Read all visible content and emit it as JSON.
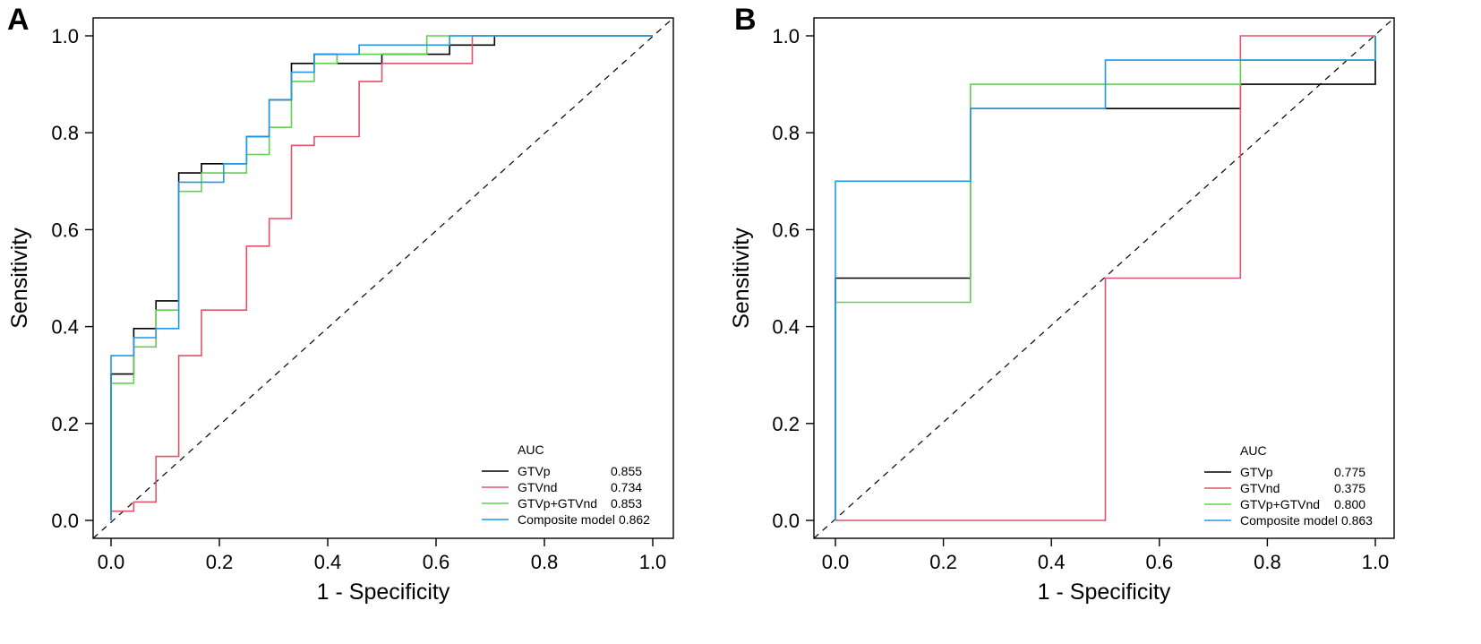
{
  "chart_data": [
    {
      "panel": "A",
      "type": "line",
      "xlabel": "1 - Specificity",
      "ylabel": "Sensitivity",
      "xlim": [
        0,
        1
      ],
      "ylim": [
        0,
        1
      ],
      "xticks": [
        "0.0",
        "0.2",
        "0.4",
        "0.6",
        "0.8",
        "1.0"
      ],
      "yticks": [
        "0.0",
        "0.2",
        "0.4",
        "0.6",
        "0.8",
        "1.0"
      ],
      "legend_title": "AUC",
      "legend_position": "bottom-right",
      "reference_line": "diagonal",
      "series": [
        {
          "name": "GTVp",
          "auc": "0.855",
          "color": "#000000",
          "points": [
            [
              0,
              0
            ],
            [
              0,
              0.302
            ],
            [
              0.042,
              0.302
            ],
            [
              0.042,
              0.396
            ],
            [
              0.083,
              0.396
            ],
            [
              0.083,
              0.453
            ],
            [
              0.125,
              0.453
            ],
            [
              0.125,
              0.717
            ],
            [
              0.167,
              0.717
            ],
            [
              0.167,
              0.736
            ],
            [
              0.25,
              0.736
            ],
            [
              0.25,
              0.792
            ],
            [
              0.292,
              0.792
            ],
            [
              0.292,
              0.868
            ],
            [
              0.333,
              0.868
            ],
            [
              0.333,
              0.943
            ],
            [
              0.375,
              0.943
            ],
            [
              0.375,
              0.962
            ],
            [
              0.417,
              0.962
            ],
            [
              0.417,
              0.943
            ],
            [
              0.5,
              0.943
            ],
            [
              0.5,
              0.962
            ],
            [
              0.625,
              0.962
            ],
            [
              0.625,
              0.981
            ],
            [
              0.708,
              0.981
            ],
            [
              0.708,
              1.0
            ],
            [
              1.0,
              1.0
            ]
          ]
        },
        {
          "name": "GTVnd",
          "auc": "0.734",
          "color": "#DF536B",
          "points": [
            [
              0,
              0
            ],
            [
              0,
              0.019
            ],
            [
              0.042,
              0.019
            ],
            [
              0.042,
              0.038
            ],
            [
              0.083,
              0.038
            ],
            [
              0.083,
              0.132
            ],
            [
              0.125,
              0.132
            ],
            [
              0.125,
              0.34
            ],
            [
              0.167,
              0.34
            ],
            [
              0.167,
              0.434
            ],
            [
              0.25,
              0.434
            ],
            [
              0.25,
              0.566
            ],
            [
              0.292,
              0.566
            ],
            [
              0.292,
              0.623
            ],
            [
              0.333,
              0.623
            ],
            [
              0.333,
              0.774
            ],
            [
              0.375,
              0.774
            ],
            [
              0.375,
              0.792
            ],
            [
              0.458,
              0.792
            ],
            [
              0.458,
              0.906
            ],
            [
              0.5,
              0.906
            ],
            [
              0.5,
              0.943
            ],
            [
              0.667,
              0.943
            ],
            [
              0.667,
              1.0
            ],
            [
              1.0,
              1.0
            ]
          ]
        },
        {
          "name": "GTVp+GTVnd",
          "auc": "0.853",
          "color": "#61D04F",
          "points": [
            [
              0,
              0
            ],
            [
              0,
              0.283
            ],
            [
              0.042,
              0.283
            ],
            [
              0.042,
              0.358
            ],
            [
              0.083,
              0.358
            ],
            [
              0.083,
              0.434
            ],
            [
              0.125,
              0.434
            ],
            [
              0.125,
              0.679
            ],
            [
              0.167,
              0.679
            ],
            [
              0.167,
              0.717
            ],
            [
              0.25,
              0.717
            ],
            [
              0.25,
              0.755
            ],
            [
              0.292,
              0.755
            ],
            [
              0.292,
              0.811
            ],
            [
              0.333,
              0.811
            ],
            [
              0.333,
              0.906
            ],
            [
              0.375,
              0.906
            ],
            [
              0.375,
              0.943
            ],
            [
              0.417,
              0.943
            ],
            [
              0.417,
              0.962
            ],
            [
              0.583,
              0.962
            ],
            [
              0.583,
              1.0
            ],
            [
              1.0,
              1.0
            ]
          ]
        },
        {
          "name": "Composite model",
          "auc": "0.862",
          "color": "#2297E6",
          "points": [
            [
              0,
              0
            ],
            [
              0,
              0.34
            ],
            [
              0.042,
              0.34
            ],
            [
              0.042,
              0.377
            ],
            [
              0.083,
              0.377
            ],
            [
              0.083,
              0.396
            ],
            [
              0.125,
              0.396
            ],
            [
              0.125,
              0.698
            ],
            [
              0.208,
              0.698
            ],
            [
              0.208,
              0.736
            ],
            [
              0.25,
              0.736
            ],
            [
              0.25,
              0.792
            ],
            [
              0.292,
              0.792
            ],
            [
              0.292,
              0.868
            ],
            [
              0.333,
              0.868
            ],
            [
              0.333,
              0.925
            ],
            [
              0.375,
              0.925
            ],
            [
              0.375,
              0.962
            ],
            [
              0.458,
              0.962
            ],
            [
              0.458,
              0.981
            ],
            [
              0.625,
              0.981
            ],
            [
              0.625,
              1.0
            ],
            [
              1.0,
              1.0
            ]
          ]
        }
      ]
    },
    {
      "panel": "B",
      "type": "line",
      "xlabel": "1 - Specificity",
      "ylabel": "Sensitivity",
      "xlim": [
        0,
        1
      ],
      "ylim": [
        0,
        1
      ],
      "xticks": [
        "0.0",
        "0.2",
        "0.4",
        "0.6",
        "0.8",
        "1.0"
      ],
      "yticks": [
        "0.0",
        "0.2",
        "0.4",
        "0.6",
        "0.8",
        "1.0"
      ],
      "legend_title": "AUC",
      "legend_position": "bottom-right",
      "reference_line": "diagonal",
      "series": [
        {
          "name": "GTVp",
          "auc": "0.775",
          "color": "#000000",
          "points": [
            [
              0,
              0
            ],
            [
              0,
              0.5
            ],
            [
              0.25,
              0.5
            ],
            [
              0.25,
              0.85
            ],
            [
              0.75,
              0.85
            ],
            [
              0.75,
              0.9
            ],
            [
              1.0,
              0.9
            ],
            [
              1.0,
              1.0
            ]
          ]
        },
        {
          "name": "GTVnd",
          "auc": "0.375",
          "color": "#DF536B",
          "points": [
            [
              0,
              0
            ],
            [
              0.5,
              0
            ],
            [
              0.5,
              0.5
            ],
            [
              0.75,
              0.5
            ],
            [
              0.75,
              1.0
            ],
            [
              1.0,
              1.0
            ]
          ]
        },
        {
          "name": "GTVp+GTVnd",
          "auc": "0.800",
          "color": "#61D04F",
          "points": [
            [
              0,
              0
            ],
            [
              0,
              0.45
            ],
            [
              0.25,
              0.45
            ],
            [
              0.25,
              0.9
            ],
            [
              0.75,
              0.9
            ],
            [
              0.75,
              0.95
            ],
            [
              1.0,
              0.95
            ],
            [
              1.0,
              1.0
            ]
          ]
        },
        {
          "name": "Composite model",
          "auc": "0.863",
          "color": "#2297E6",
          "points": [
            [
              0,
              0
            ],
            [
              0,
              0.7
            ],
            [
              0.25,
              0.7
            ],
            [
              0.25,
              0.85
            ],
            [
              0.5,
              0.85
            ],
            [
              0.5,
              0.95
            ],
            [
              1.0,
              0.95
            ],
            [
              1.0,
              1.0
            ]
          ]
        }
      ]
    }
  ]
}
